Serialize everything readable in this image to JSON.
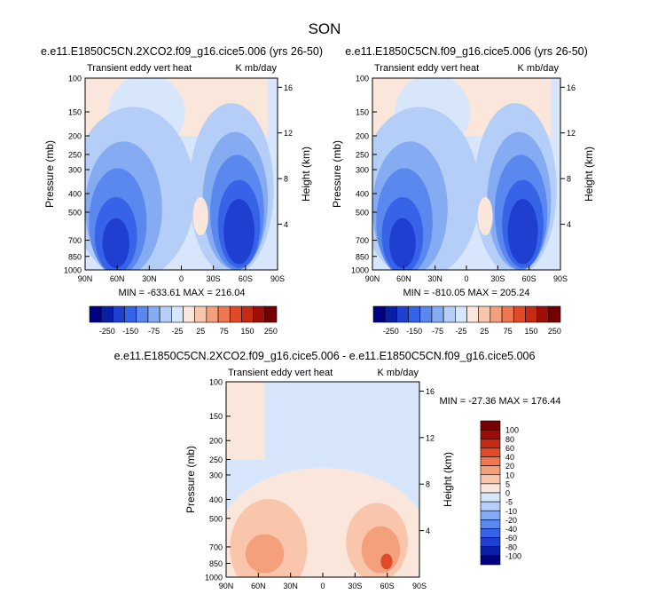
{
  "figure": {
    "title": "SON"
  },
  "colors": {
    "abs_levels": [
      "#000080",
      "#0a1fa8",
      "#1f3fd1",
      "#3763e8",
      "#5a88ee",
      "#85acf2",
      "#b5cef7",
      "#d8e6fb",
      "#fbe6dc",
      "#f9c6ac",
      "#f5a07c",
      "#ef764f",
      "#e04a28",
      "#c42a14",
      "#9c0f08",
      "#740000"
    ],
    "diff_levels": [
      "#000080",
      "#0a1fa8",
      "#1f3fd1",
      "#3763e8",
      "#5a88ee",
      "#85acf2",
      "#b5cef7",
      "#d8e6fb",
      "#fbe6dc",
      "#f9c6ac",
      "#f5a07c",
      "#ef764f",
      "#e04a28",
      "#c42a14",
      "#9c0f08",
      "#740000"
    ]
  },
  "chart_data": [
    {
      "type": "heatmap",
      "panel": "top-left",
      "title": "e.e11.E1850C5CN.2XCO2.f09_g16.cice5.006 (yrs 26-50)",
      "subtitle_left": "Transient eddy vert heat",
      "subtitle_right": "K mb/day",
      "xlabel": "",
      "ylabel": "Pressure (mb)",
      "y2label": "Height (km)",
      "x_ticks": [
        "90N",
        "60N",
        "30N",
        "0",
        "30S",
        "60S",
        "90S"
      ],
      "x_values": [
        90,
        60,
        30,
        0,
        -30,
        -60,
        -90
      ],
      "y_ticks": [
        "100",
        "150",
        "200",
        "250",
        "300",
        "400",
        "500",
        "700",
        "850",
        "1000"
      ],
      "y_values": [
        100,
        150,
        200,
        250,
        300,
        400,
        500,
        700,
        850,
        1000
      ],
      "y2_ticks": [
        "16",
        "12",
        "8",
        "4"
      ],
      "y2_values": [
        16,
        12,
        8,
        4
      ],
      "ylim": [
        1000,
        100
      ],
      "xlim": [
        90,
        -90
      ],
      "stats": "MIN = -633.61  MAX = 216.04",
      "colorbar_labels": [
        "-250",
        "-150",
        "-75",
        "-25",
        "25",
        "75",
        "150",
        "250"
      ]
    },
    {
      "type": "heatmap",
      "panel": "top-right",
      "title": "e.e11.E1850C5CN.f09_g16.cice5.006 (yrs 26-50)",
      "subtitle_left": "Transient eddy vert heat",
      "subtitle_right": "K mb/day",
      "xlabel": "",
      "ylabel": "Pressure (mb)",
      "y2label": "Height (km)",
      "x_ticks": [
        "90N",
        "60N",
        "30N",
        "0",
        "30S",
        "60S",
        "90S"
      ],
      "x_values": [
        90,
        60,
        30,
        0,
        -30,
        -60,
        -90
      ],
      "y_ticks": [
        "100",
        "150",
        "200",
        "250",
        "300",
        "400",
        "500",
        "700",
        "850",
        "1000"
      ],
      "y_values": [
        100,
        150,
        200,
        250,
        300,
        400,
        500,
        700,
        850,
        1000
      ],
      "y2_ticks": [
        "16",
        "12",
        "8",
        "4"
      ],
      "y2_values": [
        16,
        12,
        8,
        4
      ],
      "ylim": [
        1000,
        100
      ],
      "xlim": [
        90,
        -90
      ],
      "stats": "MIN = -810.05  MAX = 205.24",
      "colorbar_labels": [
        "-250",
        "-150",
        "-75",
        "-25",
        "25",
        "75",
        "150",
        "250"
      ]
    },
    {
      "type": "heatmap",
      "panel": "bottom-difference",
      "title": "e.e11.E1850C5CN.2XCO2.f09_g16.cice5.006 - e.e11.E1850C5CN.f09_g16.cice5.006",
      "subtitle_left": "Transient eddy vert heat",
      "subtitle_right": "K mb/day",
      "xlabel": "",
      "ylabel": "Pressure (mb)",
      "y2label": "Height (km)",
      "x_ticks": [
        "90N",
        "60N",
        "30N",
        "0",
        "30S",
        "60S",
        "90S"
      ],
      "x_values": [
        90,
        60,
        30,
        0,
        -30,
        -60,
        -90
      ],
      "y_ticks": [
        "100",
        "150",
        "200",
        "250",
        "300",
        "400",
        "500",
        "700",
        "850",
        "1000"
      ],
      "y_values": [
        100,
        150,
        200,
        250,
        300,
        400,
        500,
        700,
        850,
        1000
      ],
      "y2_ticks": [
        "16",
        "12",
        "8",
        "4"
      ],
      "y2_values": [
        16,
        12,
        8,
        4
      ],
      "ylim": [
        1000,
        100
      ],
      "xlim": [
        90,
        -90
      ],
      "stats": "MIN = -27.36  MAX = 176.44",
      "colorbar_labels": [
        "100",
        "80",
        "60",
        "40",
        "20",
        "10",
        "5",
        "0",
        "-5",
        "-10",
        "-20",
        "-40",
        "-60",
        "-80",
        "-100"
      ]
    }
  ]
}
